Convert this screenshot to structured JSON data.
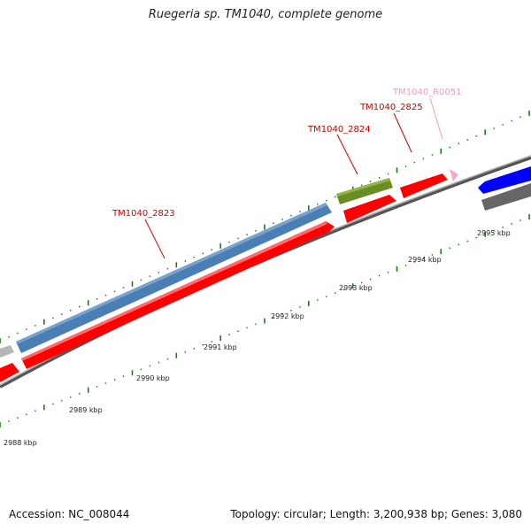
{
  "title": "Ruegeria sp. TM1040, complete genome",
  "footer": {
    "accession": "Accession: NC_008044",
    "topology": "Topology: circular; Length: 3,200,938 bp; Genes: 3,080"
  },
  "colors": {
    "cds_forward": "#4a7fb5",
    "cds_reverse": "#ff0000",
    "gene_green": "#6b8e23",
    "rrna_pink": "#f6a8c8",
    "cds_blue": "#0000ff",
    "other_grey": "#707070",
    "tick_green": "#1a7a1a",
    "backbone_grey": "#8c8c8c"
  },
  "scale_labels": [
    "2988 kbp",
    "2989 kbp",
    "2990 kbp",
    "2991 kbp",
    "2992 kbp",
    "2993 kbp",
    "2994 kbp",
    "2995 kbp"
  ],
  "gene_labels": [
    {
      "text": "TM1040_2823",
      "color": "#cc0000"
    },
    {
      "text": "TM1040_2824",
      "color": "#cc0000"
    },
    {
      "text": "TM1040_2825",
      "color": "#cc0000"
    },
    {
      "text": "TM1040_R0051",
      "color": "#f19cc2"
    }
  ]
}
